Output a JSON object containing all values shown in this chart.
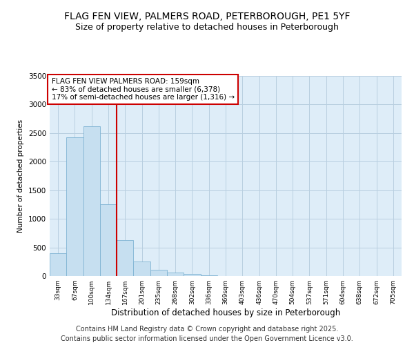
{
  "title": "FLAG FEN VIEW, PALMERS ROAD, PETERBOROUGH, PE1 5YF",
  "subtitle": "Size of property relative to detached houses in Peterborough",
  "xlabel": "Distribution of detached houses by size in Peterborough",
  "ylabel": "Number of detached properties",
  "categories": [
    "33sqm",
    "67sqm",
    "100sqm",
    "134sqm",
    "167sqm",
    "201sqm",
    "235sqm",
    "268sqm",
    "302sqm",
    "336sqm",
    "369sqm",
    "403sqm",
    "436sqm",
    "470sqm",
    "504sqm",
    "537sqm",
    "571sqm",
    "604sqm",
    "638sqm",
    "672sqm",
    "705sqm"
  ],
  "values": [
    400,
    2420,
    2620,
    1250,
    625,
    255,
    105,
    55,
    35,
    12,
    3,
    0,
    0,
    0,
    0,
    0,
    0,
    0,
    0,
    0,
    0
  ],
  "bar_color": "#c6dff0",
  "bar_edge_color": "#7fb3d3",
  "vline_color": "#cc0000",
  "annotation_title": "FLAG FEN VIEW PALMERS ROAD: 159sqm",
  "annotation_line1": "← 83% of detached houses are smaller (6,378)",
  "annotation_line2": "17% of semi-detached houses are larger (1,316) →",
  "annotation_box_color": "#cc0000",
  "ylim": [
    0,
    3500
  ],
  "yticks": [
    0,
    500,
    1000,
    1500,
    2000,
    2500,
    3000,
    3500
  ],
  "bg_color": "#deedf8",
  "footer_line1": "Contains HM Land Registry data © Crown copyright and database right 2025.",
  "footer_line2": "Contains public sector information licensed under the Open Government Licence v3.0.",
  "title_fontsize": 10,
  "subtitle_fontsize": 9,
  "annotation_fontsize": 7.5,
  "footer_fontsize": 7
}
